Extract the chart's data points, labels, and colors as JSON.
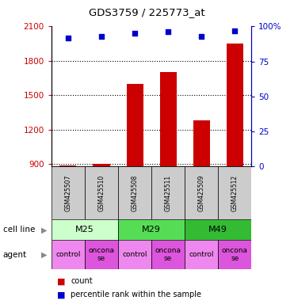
{
  "title": "GDS3759 / 225773_at",
  "samples": [
    "GSM425507",
    "GSM425510",
    "GSM425508",
    "GSM425511",
    "GSM425509",
    "GSM425512"
  ],
  "counts": [
    890,
    900,
    1600,
    1700,
    1280,
    1950
  ],
  "percentile_ranks": [
    92,
    93,
    95,
    96,
    93,
    97
  ],
  "ylim_left": [
    880,
    2100
  ],
  "ylim_right": [
    0,
    100
  ],
  "yticks_left": [
    900,
    1200,
    1500,
    1800,
    2100
  ],
  "yticks_right": [
    0,
    25,
    50,
    75,
    100
  ],
  "ytick_labels_right": [
    "0",
    "25",
    "50",
    "75",
    "100%"
  ],
  "bar_color": "#cc0000",
  "point_color": "#0000cc",
  "left_tick_color": "#cc0000",
  "right_tick_color": "#0000cc",
  "cell_lines": [
    {
      "label": "M25",
      "start": 0,
      "end": 2,
      "color": "#ccffcc"
    },
    {
      "label": "M29",
      "start": 2,
      "end": 4,
      "color": "#55dd55"
    },
    {
      "label": "M49",
      "start": 4,
      "end": 6,
      "color": "#33bb33"
    }
  ],
  "agents": [
    {
      "label": "control",
      "start": 0,
      "end": 1,
      "color": "#ee88ee"
    },
    {
      "label": "oncona\nse",
      "start": 1,
      "end": 2,
      "color": "#dd55dd"
    },
    {
      "label": "control",
      "start": 2,
      "end": 3,
      "color": "#ee88ee"
    },
    {
      "label": "oncona\nse",
      "start": 3,
      "end": 4,
      "color": "#dd55dd"
    },
    {
      "label": "control",
      "start": 4,
      "end": 5,
      "color": "#ee88ee"
    },
    {
      "label": "oncona\nse",
      "start": 5,
      "end": 6,
      "color": "#dd55dd"
    }
  ],
  "legend_count_label": "count",
  "legend_pct_label": "percentile rank within the sample",
  "cell_line_label": "cell line",
  "agent_label": "agent",
  "sample_bg": "#cccccc"
}
